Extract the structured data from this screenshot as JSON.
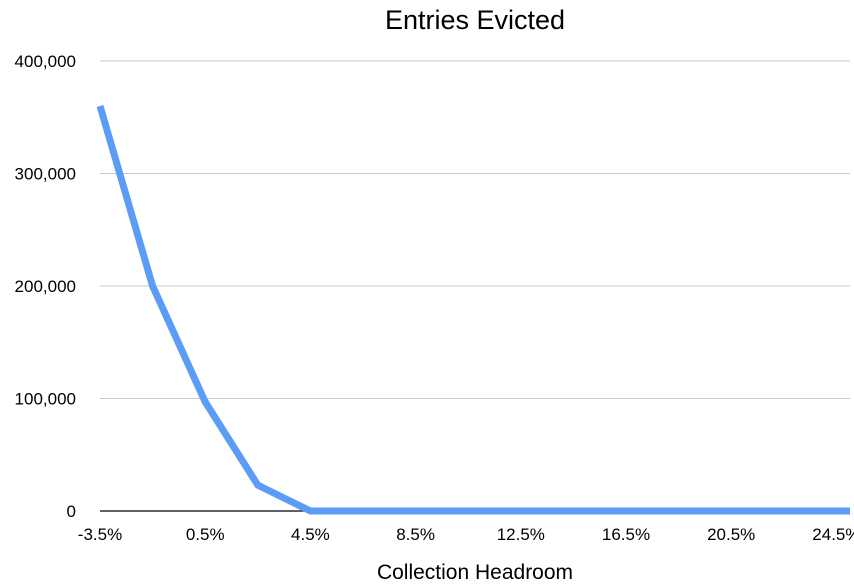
{
  "chart_data": {
    "type": "line",
    "title": "Entries Evicted",
    "xlabel": "Collection Headroom",
    "ylabel": "",
    "ylim": [
      0,
      400000
    ],
    "grid": true,
    "legend": "none",
    "x_ticks": [
      "-3.5%",
      "0.5%",
      "4.5%",
      "8.5%",
      "12.5%",
      "16.5%",
      "20.5%",
      "24.5%"
    ],
    "y_ticks": [
      "0",
      "100,000",
      "200,000",
      "300,000",
      "400,000"
    ],
    "x": [
      -3.5,
      -1.5,
      0.5,
      2.5,
      4.5,
      6.5,
      8.5,
      10.5,
      12.5,
      14.5,
      16.5,
      18.5,
      20.5,
      22.5,
      24.5,
      26.5
    ],
    "series": [
      {
        "color": "#5b9cf6",
        "values": [
          360000,
          200000,
          97000,
          23000,
          0,
          0,
          0,
          0,
          0,
          0,
          0,
          0,
          0,
          0,
          0,
          0
        ]
      }
    ]
  }
}
